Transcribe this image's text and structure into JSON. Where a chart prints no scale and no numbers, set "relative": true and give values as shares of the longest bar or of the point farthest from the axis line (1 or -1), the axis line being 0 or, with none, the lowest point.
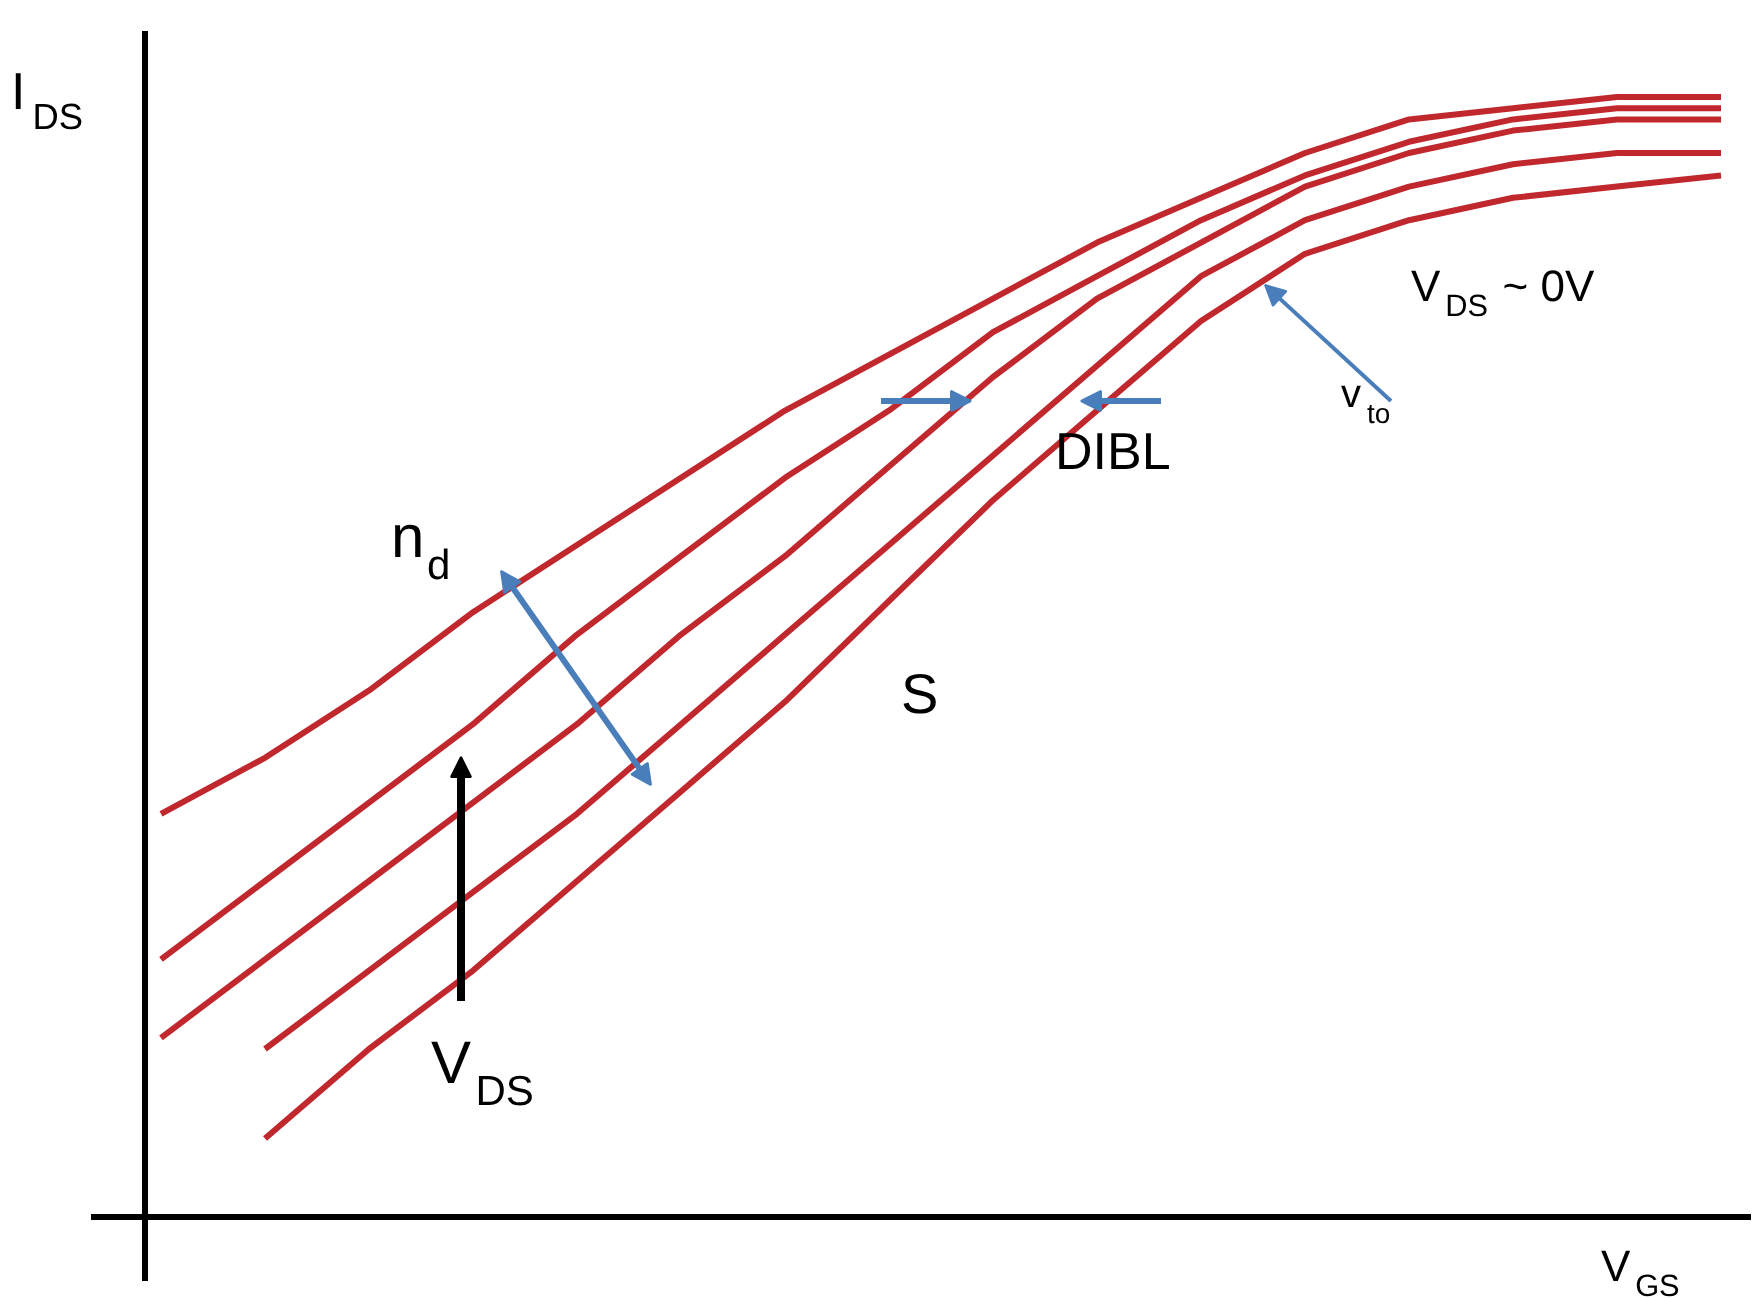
{
  "chart_data": {
    "type": "line",
    "relative": true,
    "xlabel": "V$_{GS}$",
    "ylabel": "I$_{DS}$",
    "categories": [
      null,
      null,
      null,
      null,
      null,
      null,
      null,
      null,
      null,
      null,
      null,
      null,
      null,
      null,
      null,
      null
    ],
    "series": [
      {
        "color": "#c0282e",
        "values": [
          0.36,
          0.41,
          0.47,
          0.54,
          0.6,
          0.66,
          0.72,
          0.77,
          0.82,
          0.87,
          0.91,
          0.95,
          0.98,
          0.99,
          1.0,
          1.0
        ]
      },
      {
        "color": "#c0282e",
        "values": [
          0.23,
          0.3,
          0.37,
          0.44,
          0.52,
          0.59,
          0.66,
          0.72,
          0.79,
          0.84,
          0.89,
          0.93,
          0.96,
          0.98,
          0.99,
          0.99
        ]
      },
      {
        "color": "#c0282e",
        "values": [
          0.16,
          0.23,
          0.3,
          0.37,
          0.44,
          0.52,
          0.59,
          0.67,
          0.75,
          0.82,
          0.87,
          0.92,
          0.95,
          0.97,
          0.98,
          0.98
        ]
      },
      {
        "color": "#c0282e",
        "values": [
          null,
          0.15,
          0.22,
          0.29,
          0.36,
          0.44,
          0.52,
          0.6,
          0.68,
          0.76,
          0.84,
          0.89,
          0.92,
          0.94,
          0.95,
          0.95
        ]
      },
      {
        "color": "#c0282e",
        "values": [
          null,
          0.07,
          0.15,
          0.22,
          0.3,
          0.38,
          0.46,
          0.55,
          0.64,
          0.72,
          0.8,
          0.86,
          0.89,
          0.91,
          0.92,
          0.93
        ]
      }
    ],
    "annotations": [
      "n$_{d}$",
      "V$_{DS}$",
      "S",
      "DIBL",
      "v$_{to}$",
      "V$_{DS}$ ~ 0V"
    ]
  }
}
